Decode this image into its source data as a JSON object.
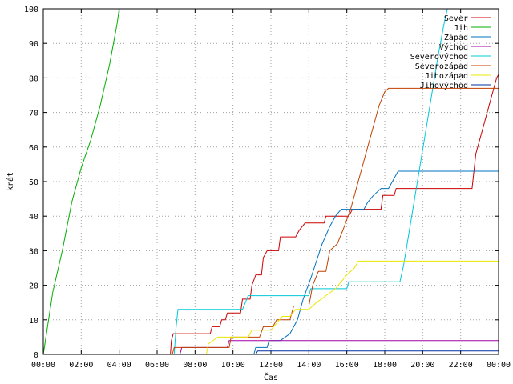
{
  "chart_data": {
    "type": "line",
    "xlabel": "Čas",
    "ylabel": "krát",
    "xlim": [
      0,
      24
    ],
    "ylim": [
      0,
      100
    ],
    "grid": true,
    "legend_position": "top-right",
    "x_ticks": [
      {
        "v": 0,
        "label": "00:00"
      },
      {
        "v": 2,
        "label": "02:00"
      },
      {
        "v": 4,
        "label": "04:00"
      },
      {
        "v": 6,
        "label": "06:00"
      },
      {
        "v": 8,
        "label": "08:00"
      },
      {
        "v": 10,
        "label": "10:00"
      },
      {
        "v": 12,
        "label": "12:00"
      },
      {
        "v": 14,
        "label": "14:00"
      },
      {
        "v": 16,
        "label": "16:00"
      },
      {
        "v": 18,
        "label": "18:00"
      },
      {
        "v": 20,
        "label": "20:00"
      },
      {
        "v": 22,
        "label": "22:00"
      },
      {
        "v": 24,
        "label": "00:00"
      }
    ],
    "y_ticks": [
      0,
      10,
      20,
      30,
      40,
      50,
      60,
      70,
      80,
      90,
      100
    ],
    "series": [
      {
        "name": "Sever",
        "color": "#cc0000",
        "points": [
          [
            0,
            0
          ],
          [
            6.7,
            0
          ],
          [
            6.75,
            4
          ],
          [
            6.85,
            6
          ],
          [
            8.8,
            6
          ],
          [
            8.9,
            8
          ],
          [
            9.3,
            8
          ],
          [
            9.4,
            10
          ],
          [
            9.6,
            10
          ],
          [
            9.7,
            12
          ],
          [
            10.4,
            12
          ],
          [
            10.5,
            16
          ],
          [
            10.9,
            16
          ],
          [
            11.0,
            20
          ],
          [
            11.2,
            23
          ],
          [
            11.5,
            23
          ],
          [
            11.6,
            28
          ],
          [
            11.8,
            30
          ],
          [
            12.4,
            30
          ],
          [
            12.5,
            34
          ],
          [
            13.3,
            34
          ],
          [
            13.5,
            36
          ],
          [
            13.8,
            38
          ],
          [
            14.8,
            38
          ],
          [
            14.9,
            40
          ],
          [
            16.1,
            40
          ],
          [
            16.3,
            42
          ],
          [
            17.8,
            42
          ],
          [
            17.9,
            46
          ],
          [
            18.5,
            46
          ],
          [
            18.6,
            48
          ],
          [
            22.6,
            48
          ],
          [
            22.8,
            58
          ],
          [
            23.2,
            66
          ],
          [
            23.6,
            74
          ],
          [
            23.9,
            80
          ],
          [
            24,
            81
          ]
        ]
      },
      {
        "name": "Jih",
        "color": "#00b000",
        "points": [
          [
            0,
            0
          ],
          [
            0.5,
            18
          ],
          [
            1.0,
            30
          ],
          [
            1.5,
            44
          ],
          [
            2.0,
            54
          ],
          [
            2.5,
            62
          ],
          [
            3.0,
            72
          ],
          [
            3.5,
            84
          ],
          [
            3.9,
            96
          ],
          [
            4.0,
            100
          ]
        ]
      },
      {
        "name": "Západ",
        "color": "#0070c0",
        "points": [
          [
            0,
            0
          ],
          [
            11.1,
            0
          ],
          [
            11.2,
            2
          ],
          [
            11.8,
            2
          ],
          [
            11.9,
            4
          ],
          [
            12.5,
            4
          ],
          [
            13.0,
            6
          ],
          [
            13.4,
            10
          ],
          [
            13.7,
            16
          ],
          [
            14.1,
            22
          ],
          [
            14.4,
            27
          ],
          [
            14.7,
            32
          ],
          [
            15.1,
            37
          ],
          [
            15.4,
            40
          ],
          [
            15.7,
            42
          ],
          [
            16.9,
            42
          ],
          [
            17.1,
            44
          ],
          [
            17.4,
            46
          ],
          [
            17.8,
            48
          ],
          [
            18.2,
            48
          ],
          [
            18.5,
            51
          ],
          [
            18.7,
            53
          ],
          [
            24,
            53
          ]
        ]
      },
      {
        "name": "Východ",
        "color": "#a000a0",
        "points": [
          [
            0,
            0
          ],
          [
            7.2,
            0
          ],
          [
            7.3,
            2
          ],
          [
            9.7,
            2
          ],
          [
            9.8,
            4
          ],
          [
            24,
            4
          ]
        ]
      },
      {
        "name": "Severovýchod",
        "color": "#00c8d8",
        "points": [
          [
            0,
            0
          ],
          [
            6.9,
            0
          ],
          [
            7.0,
            8
          ],
          [
            7.1,
            13
          ],
          [
            10.5,
            13
          ],
          [
            10.8,
            17
          ],
          [
            14.0,
            17
          ],
          [
            14.1,
            19
          ],
          [
            16.0,
            19
          ],
          [
            16.1,
            21
          ],
          [
            18.8,
            21
          ],
          [
            19.0,
            26
          ],
          [
            19.3,
            36
          ],
          [
            19.6,
            46
          ],
          [
            19.9,
            56
          ],
          [
            20.2,
            66
          ],
          [
            20.5,
            76
          ],
          [
            20.8,
            86
          ],
          [
            21.1,
            95
          ],
          [
            21.3,
            100
          ]
        ]
      },
      {
        "name": "Severozápad",
        "color": "#c04000",
        "points": [
          [
            0,
            0
          ],
          [
            6.8,
            0
          ],
          [
            6.9,
            2
          ],
          [
            9.8,
            2
          ],
          [
            9.9,
            5
          ],
          [
            11.4,
            5
          ],
          [
            11.6,
            8
          ],
          [
            12.1,
            8
          ],
          [
            12.3,
            10
          ],
          [
            13.0,
            10
          ],
          [
            13.2,
            14
          ],
          [
            14.0,
            14
          ],
          [
            14.2,
            20
          ],
          [
            14.5,
            24
          ],
          [
            14.9,
            24
          ],
          [
            15.1,
            30
          ],
          [
            15.5,
            32
          ],
          [
            15.8,
            36
          ],
          [
            16.2,
            42
          ],
          [
            16.5,
            48
          ],
          [
            16.8,
            54
          ],
          [
            17.1,
            60
          ],
          [
            17.4,
            66
          ],
          [
            17.7,
            72
          ],
          [
            18.0,
            76
          ],
          [
            18.2,
            77
          ],
          [
            24,
            77
          ]
        ]
      },
      {
        "name": "Jihozápad",
        "color": "#e8e800",
        "points": [
          [
            0,
            0
          ],
          [
            8.6,
            0
          ],
          [
            8.7,
            3
          ],
          [
            9.2,
            5
          ],
          [
            10.8,
            5
          ],
          [
            11.0,
            7
          ],
          [
            12.0,
            7
          ],
          [
            12.3,
            9
          ],
          [
            12.6,
            11
          ],
          [
            13.0,
            11
          ],
          [
            13.3,
            13
          ],
          [
            14.0,
            13
          ],
          [
            14.4,
            15
          ],
          [
            14.9,
            17
          ],
          [
            15.4,
            19
          ],
          [
            15.7,
            21
          ],
          [
            16.0,
            23
          ],
          [
            16.4,
            25
          ],
          [
            16.6,
            27
          ],
          [
            24,
            27
          ]
        ]
      },
      {
        "name": "Jihovýchod",
        "color": "#0030a0",
        "points": [
          [
            0,
            0
          ],
          [
            11.2,
            0
          ],
          [
            11.3,
            1
          ],
          [
            24,
            1
          ]
        ]
      }
    ]
  }
}
